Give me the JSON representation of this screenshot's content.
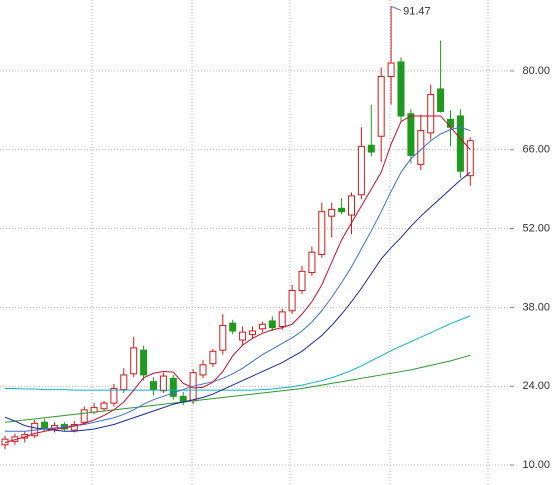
{
  "chart_data": {
    "type": "candlestick",
    "ylim": [
      6.45,
      92.6
    ],
    "yticks": [
      {
        "value": 10,
        "label": "10.00"
      },
      {
        "value": 24,
        "label": "24.00"
      },
      {
        "value": 38,
        "label": "38.00"
      },
      {
        "value": 52,
        "label": "52.00"
      },
      {
        "value": 66,
        "label": "66.00"
      },
      {
        "value": 80,
        "label": "80.00"
      }
    ],
    "grid": true,
    "up_color": "#d11a1a",
    "down_color": "#1e9a1e",
    "open": [
      13.6,
      14.2,
      14.8,
      15.2,
      17.6,
      16.4,
      17.2,
      16.2,
      17.6,
      19.4,
      20.0,
      21.0,
      23.4,
      26.2,
      30.4,
      24.8,
      23.2,
      25.4,
      22.2,
      21.4,
      26.0,
      28.0,
      30.4,
      35.2,
      32.2,
      33.2,
      34.2,
      35.6,
      34.6,
      37.4,
      41.0,
      44.2,
      47.4,
      54.2,
      55.6,
      54.4,
      58.0,
      66.8,
      68.4,
      79.0,
      81.6,
      72.4,
      63.4,
      69.0,
      76.8,
      71.4,
      72.0,
      61.4
    ],
    "high": [
      15.2,
      15.6,
      16.0,
      18.0,
      18.2,
      17.6,
      17.6,
      17.8,
      20.4,
      21.0,
      21.4,
      24.4,
      27.2,
      32.8,
      31.2,
      25.6,
      26.4,
      26.0,
      23.0,
      27.0,
      28.6,
      30.6,
      36.8,
      35.8,
      34.6,
      34.6,
      35.4,
      36.4,
      37.8,
      42.0,
      45.4,
      48.8,
      56.6,
      56.6,
      57.4,
      58.4,
      70.0,
      74.0,
      80.6,
      91.47,
      82.4,
      73.2,
      72.2,
      77.6,
      85.4,
      73.0,
      73.2,
      68.2
    ],
    "low": [
      12.8,
      13.6,
      14.0,
      14.8,
      16.0,
      15.8,
      16.0,
      15.8,
      17.2,
      19.0,
      19.6,
      20.4,
      22.8,
      25.6,
      25.0,
      22.4,
      22.8,
      21.6,
      20.6,
      20.8,
      25.4,
      27.4,
      29.6,
      33.2,
      31.4,
      32.4,
      33.6,
      33.8,
      34.0,
      36.8,
      40.4,
      43.6,
      46.8,
      50.4,
      54.6,
      51.0,
      57.2,
      64.8,
      63.8,
      74.0,
      71.0,
      63.6,
      62.4,
      67.8,
      72.6,
      66.6,
      61.0,
      59.6
    ],
    "close": [
      14.6,
      15.0,
      15.4,
      17.4,
      16.6,
      17.0,
      16.4,
      17.2,
      19.8,
      20.2,
      21.0,
      23.6,
      26.0,
      30.8,
      26.0,
      23.4,
      25.8,
      22.2,
      21.2,
      26.4,
      27.8,
      30.2,
      34.8,
      33.8,
      33.6,
      33.8,
      35.0,
      34.4,
      37.2,
      41.0,
      44.4,
      47.8,
      55.0,
      55.4,
      55.0,
      57.8,
      66.6,
      65.6,
      79.0,
      81.4,
      72.0,
      65.0,
      69.4,
      75.8,
      72.8,
      70.0,
      62.2,
      67.6
    ],
    "lines": [
      {
        "color": "#0fb4c8",
        "values": [
          23.6,
          23.6,
          23.5,
          23.5,
          23.4,
          23.4,
          23.4,
          23.3,
          23.3,
          23.3,
          23.3,
          23.3,
          23.3,
          23.3,
          23.3,
          23.3,
          23.3,
          23.3,
          23.3,
          23.3,
          23.3,
          23.3,
          23.3,
          23.3,
          23.3,
          23.3,
          23.4,
          23.5,
          23.7,
          23.9,
          24.2,
          24.6,
          25.0,
          25.5,
          26.1,
          26.8,
          27.6,
          28.5,
          29.4,
          30.3,
          31.1,
          31.9,
          32.7,
          33.5,
          34.3,
          35.1,
          35.8,
          36.5
        ]
      },
      {
        "color": "#2e9a2e",
        "values": [
          17.6,
          17.8,
          18.0,
          18.2,
          18.4,
          18.6,
          18.8,
          19.0,
          19.2,
          19.4,
          19.6,
          19.8,
          20.0,
          20.2,
          20.4,
          20.6,
          20.8,
          21.0,
          21.2,
          21.4,
          21.6,
          21.8,
          22.0,
          22.2,
          22.4,
          22.6,
          22.8,
          23.0,
          23.2,
          23.4,
          23.6,
          23.9,
          24.2,
          24.5,
          24.8,
          25.1,
          25.4,
          25.7,
          26.0,
          26.3,
          26.6,
          26.9,
          27.3,
          27.7,
          28.1,
          28.5,
          29.0,
          29.5
        ]
      },
      {
        "color": "#1a2a9a",
        "values": [
          18.5,
          17.8,
          17.0,
          16.6,
          16.4,
          16.2,
          16.0,
          16.0,
          16.2,
          16.4,
          16.8,
          17.2,
          17.8,
          18.4,
          19.0,
          19.6,
          20.2,
          20.8,
          21.2,
          21.6,
          22.0,
          22.6,
          23.4,
          24.2,
          25.0,
          25.8,
          26.6,
          27.4,
          28.2,
          29.2,
          30.2,
          31.6,
          33.0,
          34.8,
          36.8,
          39.0,
          41.4,
          44.0,
          46.6,
          48.6,
          50.4,
          52.4,
          54.2,
          55.8,
          57.4,
          59.0,
          60.6,
          62.0
        ]
      },
      {
        "color": "#3f6fd8",
        "values": [
          16.0,
          16.0,
          16.0,
          16.2,
          16.4,
          16.6,
          16.8,
          17.0,
          17.2,
          17.6,
          18.0,
          18.4,
          19.0,
          19.8,
          20.8,
          21.6,
          22.2,
          22.8,
          23.4,
          24.0,
          24.4,
          24.8,
          25.4,
          26.2,
          27.2,
          28.4,
          29.6,
          30.6,
          31.6,
          32.6,
          33.8,
          35.4,
          37.4,
          39.8,
          42.4,
          45.2,
          48.4,
          51.6,
          55.0,
          58.6,
          62.0,
          64.4,
          66.0,
          67.6,
          68.8,
          69.6,
          70.0,
          69.4
        ]
      },
      {
        "color": "#c8102e",
        "values": [
          14.0,
          14.5,
          15.0,
          15.6,
          16.0,
          16.3,
          16.6,
          16.9,
          17.4,
          18.0,
          18.8,
          19.8,
          21.2,
          23.3,
          25.5,
          26.3,
          26.6,
          26.5,
          24.5,
          23.7,
          23.8,
          24.7,
          26.6,
          29.4,
          31.3,
          32.5,
          33.4,
          34.0,
          34.4,
          35.0,
          36.8,
          39.0,
          42.0,
          46.0,
          50.0,
          53.0,
          56.0,
          59.0,
          62.0,
          67.0,
          71.0,
          72.0,
          72.0,
          72.0,
          72.0,
          70.0,
          68.0,
          66.0
        ]
      }
    ]
  }
}
